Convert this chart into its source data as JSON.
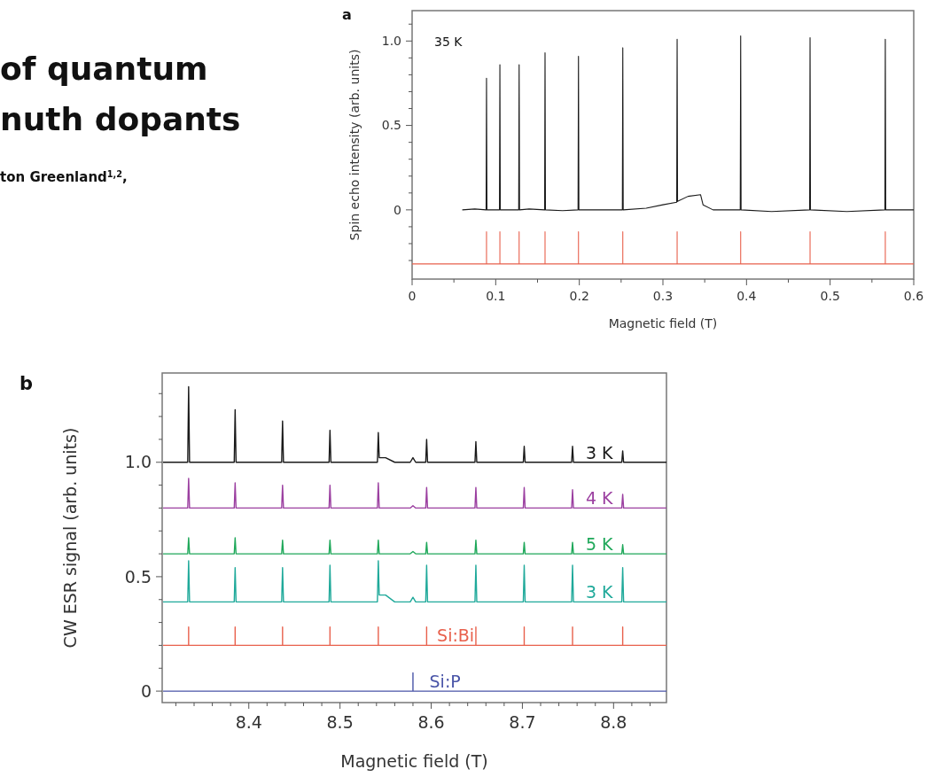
{
  "chart_data": [
    {
      "type": "line",
      "title": "a",
      "xlabel": "Magnetic field (T)",
      "ylabel": "Spin echo intensity (arb. units)",
      "annotations": [
        "35 K",
        "of quantum",
        "nuth dopants",
        "ton Greenland$^{1,2}$,"
      ],
      "xlim": [
        0,
        0.6
      ],
      "xticks": [
        0,
        {
          "value": 0.05,
          "label": null
        },
        0.1,
        {
          "value": 0.15,
          "label": null
        },
        0.2,
        {
          "value": 0.25,
          "label": null
        },
        0.3,
        {
          "value": 0.35,
          "label": null
        },
        0.4,
        {
          "value": 0.45,
          "label": null
        },
        0.5,
        {
          "value": 0.55,
          "label": null
        },
        0.6
      ],
      "ylim": [
        -0.41,
        1.18
      ],
      "yticks": [
        {
          "value": -0.3,
          "label": null
        },
        {
          "value": -0.2,
          "label": null
        },
        {
          "value": -0.1,
          "label": null
        },
        0,
        {
          "value": 0.1,
          "label": null
        },
        {
          "value": 0.2,
          "label": null
        },
        {
          "value": 0.3,
          "label": null
        },
        {
          "value": 0.4,
          "label": null
        },
        {
          "value": 0.5,
          "label": "0.5"
        },
        {
          "value": 0.6,
          "label": null
        },
        {
          "value": 0.7,
          "label": null
        },
        {
          "value": 0.8,
          "label": null
        },
        {
          "value": 0.9,
          "label": null
        },
        {
          "value": 1.0,
          "label": "1.0"
        },
        {
          "value": 1.1,
          "label": null
        }
      ],
      "grid": false,
      "series": [
        {
          "color": "#1a1a1a",
          "x": [
            0.06,
            0.075,
            0.0885,
            0.089,
            0.0895,
            0.1045,
            0.105,
            0.1055,
            0.1275,
            0.128,
            0.1285,
            0.14,
            0.1585,
            0.159,
            0.1595,
            0.18,
            0.1985,
            0.199,
            0.1995,
            0.23,
            0.2515,
            0.252,
            0.2525,
            0.28,
            0.3,
            0.3165,
            0.317,
            0.3175,
            0.33,
            0.345,
            0.348,
            0.36,
            0.3925,
            0.393,
            0.3935,
            0.43,
            0.4755,
            0.476,
            0.4765,
            0.52,
            0.5655,
            0.566,
            0.5665,
            0.6
          ],
          "values": [
            0,
            0.005,
            0,
            0.78,
            0,
            0,
            0.86,
            0,
            0,
            0.86,
            0,
            0.005,
            0,
            0.93,
            0,
            -0.005,
            0,
            0.91,
            0,
            0,
            0,
            0.96,
            0,
            0.01,
            0.03,
            0.045,
            1.01,
            0.05,
            0.08,
            0.09,
            0.03,
            0,
            0,
            1.03,
            0,
            -0.01,
            0,
            1.02,
            0,
            -0.01,
            0,
            1.01,
            0,
            0
          ]
        },
        {
          "color": "#e8604c",
          "x": [
            0,
            0.089,
            0.089,
            0.089,
            0.105,
            0.105,
            0.105,
            0.128,
            0.128,
            0.128,
            0.159,
            0.159,
            0.159,
            0.199,
            0.199,
            0.199,
            0.252,
            0.252,
            0.252,
            0.317,
            0.317,
            0.317,
            0.393,
            0.393,
            0.393,
            0.476,
            0.476,
            0.476,
            0.566,
            0.566,
            0.566,
            0.6
          ],
          "values": [
            -0.32,
            -0.32,
            -0.13,
            -0.32,
            -0.32,
            -0.13,
            -0.32,
            -0.32,
            -0.13,
            -0.32,
            -0.32,
            -0.13,
            -0.32,
            -0.32,
            -0.13,
            -0.32,
            -0.32,
            -0.13,
            -0.32,
            -0.32,
            -0.13,
            -0.32,
            -0.32,
            -0.13,
            -0.32,
            -0.32,
            -0.13,
            -0.32,
            -0.32,
            -0.13,
            -0.32,
            -0.32
          ]
        }
      ]
    },
    {
      "type": "line",
      "title": "b",
      "xlabel": "Magnetic field (T)",
      "ylabel": "CW ESR signal (arb. units)",
      "xlim": [
        8.305,
        8.858
      ],
      "xticks": [
        {
          "value": 8.32,
          "label": null
        },
        {
          "value": 8.34,
          "label": null
        },
        {
          "value": 8.36,
          "label": null
        },
        {
          "value": 8.38,
          "label": null
        },
        8.4,
        {
          "value": 8.42,
          "label": null
        },
        {
          "value": 8.44,
          "label": null
        },
        {
          "value": 8.46,
          "label": null
        },
        {
          "value": 8.48,
          "label": null
        },
        8.5,
        {
          "value": 8.52,
          "label": null
        },
        {
          "value": 8.54,
          "label": null
        },
        {
          "value": 8.56,
          "label": null
        },
        {
          "value": 8.58,
          "label": null
        },
        8.6,
        {
          "value": 8.62,
          "label": null
        },
        {
          "value": 8.64,
          "label": null
        },
        {
          "value": 8.66,
          "label": null
        },
        {
          "value": 8.68,
          "label": null
        },
        8.7,
        {
          "value": 8.72,
          "label": null
        },
        {
          "value": 8.74,
          "label": null
        },
        {
          "value": 8.76,
          "label": null
        },
        {
          "value": 8.78,
          "label": null
        },
        8.8,
        {
          "value": 8.82,
          "label": null
        },
        {
          "value": 8.84,
          "label": null
        }
      ],
      "ylim": [
        -0.05,
        1.39
      ],
      "yticks": [
        0,
        {
          "value": 0.1,
          "label": null
        },
        {
          "value": 0.2,
          "label": null
        },
        {
          "value": 0.3,
          "label": null
        },
        {
          "value": 0.4,
          "label": null
        },
        {
          "value": 0.5,
          "label": "0.5"
        },
        {
          "value": 0.6,
          "label": null
        },
        {
          "value": 0.7,
          "label": null
        },
        {
          "value": 0.8,
          "label": null
        },
        {
          "value": 0.9,
          "label": null
        },
        {
          "value": 1.0,
          "label": "1.0"
        },
        {
          "value": 1.1,
          "label": null
        },
        {
          "value": 1.2,
          "label": null
        },
        {
          "value": 1.3,
          "label": null
        }
      ],
      "grid": false,
      "x": [
        8.306,
        8.333,
        8.334,
        8.335,
        8.384,
        8.385,
        8.386,
        8.436,
        8.437,
        8.438,
        8.488,
        8.489,
        8.49,
        8.541,
        8.542,
        8.543,
        8.55,
        8.56,
        8.577,
        8.58,
        8.583,
        8.594,
        8.595,
        8.596,
        8.648,
        8.649,
        8.65,
        8.701,
        8.702,
        8.703,
        8.754,
        8.755,
        8.756,
        8.809,
        8.81,
        8.811,
        8.858
      ],
      "series": [
        {
          "name": "3 K",
          "color": "#1a1a1a",
          "values": [
            1.0,
            1.0,
            1.33,
            1.0,
            1.0,
            1.23,
            1.0,
            1.0,
            1.18,
            1.0,
            1.0,
            1.14,
            1.0,
            1.0,
            1.13,
            1.02,
            1.02,
            1.0,
            1.0,
            1.02,
            1.0,
            1.0,
            1.1,
            1.0,
            1.0,
            1.09,
            1.0,
            1.0,
            1.07,
            1.0,
            1.0,
            1.07,
            1.0,
            1.0,
            1.05,
            1.0,
            1.0
          ]
        },
        {
          "name": "4 K",
          "color": "#9b3fa0",
          "values": [
            0.8,
            0.8,
            0.93,
            0.8,
            0.8,
            0.91,
            0.8,
            0.8,
            0.9,
            0.8,
            0.8,
            0.9,
            0.8,
            0.8,
            0.91,
            0.8,
            0.8,
            0.8,
            0.8,
            0.81,
            0.8,
            0.8,
            0.89,
            0.8,
            0.8,
            0.89,
            0.8,
            0.8,
            0.89,
            0.8,
            0.8,
            0.88,
            0.8,
            0.8,
            0.86,
            0.8,
            0.8
          ]
        },
        {
          "name": "5 K",
          "color": "#1fa85a",
          "values": [
            0.6,
            0.6,
            0.67,
            0.6,
            0.6,
            0.67,
            0.6,
            0.6,
            0.66,
            0.6,
            0.6,
            0.66,
            0.6,
            0.6,
            0.66,
            0.6,
            0.6,
            0.6,
            0.6,
            0.61,
            0.6,
            0.6,
            0.65,
            0.6,
            0.6,
            0.66,
            0.6,
            0.6,
            0.65,
            0.6,
            0.6,
            0.65,
            0.6,
            0.6,
            0.64,
            0.6,
            0.6
          ]
        },
        {
          "name": "3 K",
          "color": "#1fa99a",
          "values": [
            0.39,
            0.39,
            0.57,
            0.39,
            0.39,
            0.54,
            0.39,
            0.39,
            0.54,
            0.39,
            0.39,
            0.55,
            0.39,
            0.39,
            0.57,
            0.42,
            0.42,
            0.39,
            0.39,
            0.41,
            0.39,
            0.39,
            0.55,
            0.39,
            0.39,
            0.55,
            0.39,
            0.39,
            0.55,
            0.39,
            0.39,
            0.55,
            0.39,
            0.39,
            0.54,
            0.39,
            0.39
          ]
        },
        {
          "name": "Si:Bi",
          "color": "#e8604c",
          "x": [
            8.306,
            8.334,
            8.334,
            8.334,
            8.385,
            8.385,
            8.385,
            8.437,
            8.437,
            8.437,
            8.489,
            8.489,
            8.489,
            8.542,
            8.542,
            8.542,
            8.595,
            8.595,
            8.595,
            8.649,
            8.649,
            8.649,
            8.702,
            8.702,
            8.702,
            8.755,
            8.755,
            8.755,
            8.81,
            8.81,
            8.81,
            8.858
          ],
          "values": [
            0.2,
            0.2,
            0.28,
            0.2,
            0.2,
            0.28,
            0.2,
            0.2,
            0.28,
            0.2,
            0.2,
            0.28,
            0.2,
            0.2,
            0.28,
            0.2,
            0.2,
            0.28,
            0.2,
            0.2,
            0.28,
            0.2,
            0.2,
            0.28,
            0.2,
            0.2,
            0.28,
            0.2,
            0.2,
            0.28,
            0.2,
            0.2
          ]
        },
        {
          "name": "Si:P",
          "color": "#4a55a8",
          "x": [
            8.306,
            8.58,
            8.58,
            8.58,
            8.858
          ],
          "values": [
            0,
            0,
            0.08,
            0,
            0
          ]
        }
      ]
    }
  ]
}
